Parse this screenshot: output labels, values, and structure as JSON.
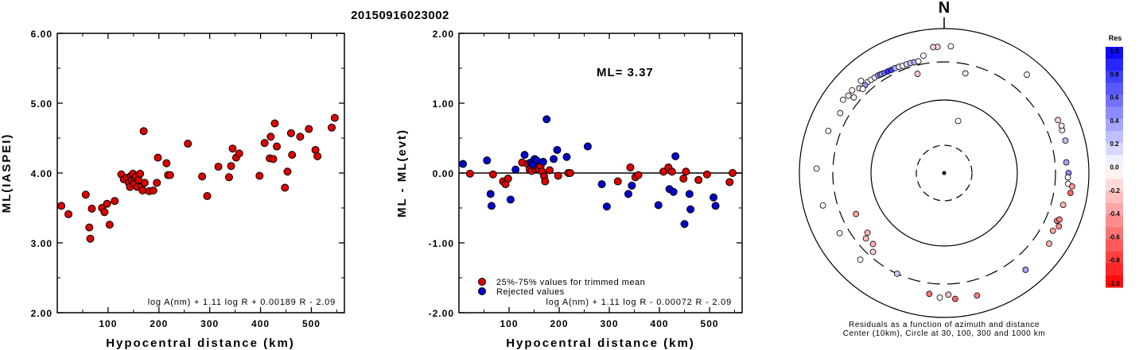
{
  "title": "20150916023002",
  "chart_data": [
    {
      "type": "scatter",
      "xlabel": "Hypocentral distance (km)",
      "ylabel": "ML(IASPEI)",
      "xlim": [
        0,
        565
      ],
      "ylim": [
        2.0,
        6.0
      ],
      "xticks": [
        "100",
        "200",
        "300",
        "400",
        "500"
      ],
      "yticks": [
        "2.00",
        "3.00",
        "4.00",
        "5.00",
        "6.00"
      ],
      "formula": "log A(nm) + 1.11 log R + 0.00189 R - 2.09",
      "series": [
        {
          "color": "#dd0000",
          "points": [
            [
              8,
              3.53
            ],
            [
              22,
              3.41
            ],
            [
              56,
              3.69
            ],
            [
              63,
              3.22
            ],
            [
              65,
              3.06
            ],
            [
              68,
              3.49
            ],
            [
              88,
              3.5
            ],
            [
              93,
              3.44
            ],
            [
              98,
              3.56
            ],
            [
              103,
              3.26
            ],
            [
              113,
              3.6
            ],
            [
              126,
              3.98
            ],
            [
              131,
              3.91
            ],
            [
              137,
              3.93
            ],
            [
              141,
              3.86
            ],
            [
              143,
              3.8
            ],
            [
              145,
              3.96
            ],
            [
              147,
              3.9
            ],
            [
              149,
              3.99
            ],
            [
              151,
              3.85
            ],
            [
              153,
              3.93
            ],
            [
              155,
              3.95
            ],
            [
              157,
              3.8
            ],
            [
              160,
              3.9
            ],
            [
              163,
              3.99
            ],
            [
              166,
              3.8
            ],
            [
              168,
              3.75
            ],
            [
              170,
              4.6
            ],
            [
              172,
              3.86
            ],
            [
              181,
              3.74
            ],
            [
              189,
              3.75
            ],
            [
              196,
              3.86
            ],
            [
              198,
              4.22
            ],
            [
              215,
              4.14
            ],
            [
              218,
              3.97
            ],
            [
              222,
              3.97
            ],
            [
              257,
              4.42
            ],
            [
              285,
              3.95
            ],
            [
              295,
              3.67
            ],
            [
              317,
              4.09
            ],
            [
              338,
              3.94
            ],
            [
              342,
              4.1
            ],
            [
              345,
              4.35
            ],
            [
              352,
              4.22
            ],
            [
              358,
              4.28
            ],
            [
              398,
              3.96
            ],
            [
              408,
              4.43
            ],
            [
              418,
              4.21
            ],
            [
              420,
              4.52
            ],
            [
              425,
              4.2
            ],
            [
              428,
              4.71
            ],
            [
              432,
              4.38
            ],
            [
              448,
              3.79
            ],
            [
              453,
              4.02
            ],
            [
              460,
              4.57
            ],
            [
              462,
              4.26
            ],
            [
              478,
              4.52
            ],
            [
              495,
              4.63
            ],
            [
              508,
              4.33
            ],
            [
              512,
              4.24
            ],
            [
              540,
              4.65
            ],
            [
              546,
              4.79
            ]
          ]
        }
      ]
    },
    {
      "type": "scatter",
      "xlabel": "Hypocentral distance (km)",
      "ylabel": "ML - ML(evt)",
      "xlim": [
        0,
        565
      ],
      "ylim": [
        -2.0,
        2.0
      ],
      "xticks": [
        "100",
        "200",
        "300",
        "400",
        "500"
      ],
      "yticks": [
        "-2.00",
        "-1.00",
        "0.00",
        "1.00",
        "2.00"
      ],
      "reference_line": 0.0,
      "ml_label": "ML= 3.37",
      "formula": "log A(nm) + 1.11 log R - 0.00072 R - 2.09",
      "series": [
        {
          "name": "25%-75% values for trimmed mean",
          "color": "#dd0000",
          "points": [
            [
              22,
              -0.01
            ],
            [
              68,
              -0.02
            ],
            [
              88,
              -0.12
            ],
            [
              93,
              -0.16
            ],
            [
              98,
              -0.08
            ],
            [
              126,
              0.15
            ],
            [
              137,
              0.13
            ],
            [
              141,
              0.05
            ],
            [
              145,
              0.03
            ],
            [
              149,
              0.12
            ],
            [
              153,
              0.06
            ],
            [
              157,
              0.08
            ],
            [
              160,
              0.05
            ],
            [
              163,
              0.1
            ],
            [
              166,
              0.02
            ],
            [
              170,
              -0.05
            ],
            [
              172,
              -0.12
            ],
            [
              181,
              0.04
            ],
            [
              198,
              -0.04
            ],
            [
              218,
              0.0
            ],
            [
              222,
              0.0
            ],
            [
              317,
              -0.12
            ],
            [
              342,
              0.08
            ],
            [
              352,
              -0.06
            ],
            [
              358,
              -0.03
            ],
            [
              408,
              0.02
            ],
            [
              418,
              0.08
            ],
            [
              425,
              0.02
            ],
            [
              448,
              -0.08
            ],
            [
              453,
              0.02
            ],
            [
              478,
              -0.1
            ],
            [
              495,
              -0.02
            ],
            [
              546,
              0.0
            ],
            [
              540,
              -0.13
            ]
          ]
        },
        {
          "name": "Rejected values",
          "color": "#0000cc",
          "points": [
            [
              8,
              0.13
            ],
            [
              56,
              0.18
            ],
            [
              63,
              -0.3
            ],
            [
              65,
              -0.47
            ],
            [
              103,
              -0.38
            ],
            [
              113,
              0.05
            ],
            [
              131,
              0.26
            ],
            [
              143,
              0.15
            ],
            [
              147,
              0.12
            ],
            [
              151,
              0.2
            ],
            [
              155,
              0.18
            ],
            [
              168,
              0.16
            ],
            [
              175,
              0.77
            ],
            [
              189,
              0.2
            ],
            [
              196,
              0.33
            ],
            [
              215,
              0.23
            ],
            [
              257,
              0.38
            ],
            [
              285,
              -0.16
            ],
            [
              295,
              -0.48
            ],
            [
              338,
              -0.3
            ],
            [
              345,
              -0.18
            ],
            [
              398,
              -0.46
            ],
            [
              420,
              -0.23
            ],
            [
              428,
              -0.27
            ],
            [
              432,
              0.24
            ],
            [
              460,
              -0.3
            ],
            [
              462,
              -0.52
            ],
            [
              508,
              -0.35
            ],
            [
              512,
              -0.47
            ],
            [
              450,
              -0.73
            ]
          ]
        }
      ]
    },
    {
      "type": "scatter",
      "subtype": "polar-residuals",
      "north_label": "N",
      "caption_line1": "Residuals as a function of azimuth and distance",
      "caption_line2": "Center (10km), Circle at 30, 100, 300 and 1000 km",
      "rings_km": [
        10,
        30,
        100,
        300,
        1000
      ],
      "colorbar": {
        "title": "Res",
        "ticks": [
          "1.0",
          "0.8",
          "0.6",
          "0.4",
          "0.2",
          "0.0",
          "-0.2",
          "-0.4",
          "-0.6",
          "-0.8",
          "-1.0"
        ],
        "min": -1.0,
        "max": 1.0,
        "positive_color": "#0000ff",
        "negative_color": "#ff0000"
      },
      "points": [
        {
          "az": 3,
          "dist": 530,
          "res": 0.0
        },
        {
          "az": 357,
          "dist": 520,
          "res": -0.15
        },
        {
          "az": 355,
          "dist": 520,
          "res": -0.15
        },
        {
          "az": 40,
          "dist": 560,
          "res": 0.0
        },
        {
          "az": 12,
          "dist": 230,
          "res": -0.1
        },
        {
          "az": 65,
          "dist": 500,
          "res": -0.15
        },
        {
          "az": 70,
          "dist": 500,
          "res": -0.1
        },
        {
          "az": 75,
          "dist": 500,
          "res": 0.25
        },
        {
          "az": 68,
          "dist": 520,
          "res": -0.1
        },
        {
          "az": 85,
          "dist": 450,
          "res": 0.35
        },
        {
          "az": 90,
          "dist": 480,
          "res": 0.45
        },
        {
          "az": 92,
          "dist": 470,
          "res": 0.05
        },
        {
          "az": 95,
          "dist": 480,
          "res": 0.0
        },
        {
          "az": 99,
          "dist": 545,
          "res": -0.6
        },
        {
          "az": 96,
          "dist": 560,
          "res": -0.4
        },
        {
          "az": 105,
          "dist": 460,
          "res": -0.3
        },
        {
          "az": 113,
          "dist": 450,
          "res": -0.5
        },
        {
          "az": 112,
          "dist": 480,
          "res": -0.5
        },
        {
          "az": 118,
          "dist": 460,
          "res": -0.35
        },
        {
          "az": 115,
          "dist": 520,
          "res": -0.45
        },
        {
          "az": 124,
          "dist": 520,
          "res": -0.3
        },
        {
          "az": 140,
          "dist": 520,
          "res": 0.35
        },
        {
          "az": 165,
          "dist": 530,
          "res": -0.5
        },
        {
          "az": 175,
          "dist": 520,
          "res": -0.6
        },
        {
          "az": 178,
          "dist": 440,
          "res": -0.25
        },
        {
          "az": 182,
          "dist": 490,
          "res": 0.05
        },
        {
          "az": 187,
          "dist": 440,
          "res": -0.55
        },
        {
          "az": 15,
          "dist": 60,
          "res": 0.0
        },
        {
          "az": 205,
          "dist": 300,
          "res": 0.2
        },
        {
          "az": 225,
          "dist": 220,
          "res": -0.3
        },
        {
          "az": 230,
          "dist": 230,
          "res": -0.25
        },
        {
          "az": 222,
          "dist": 260,
          "res": -0.2
        },
        {
          "az": 232,
          "dist": 200,
          "res": -0.3
        },
        {
          "az": 245,
          "dist": 200,
          "res": -0.35
        },
        {
          "az": 224,
          "dist": 420,
          "res": 0.0
        },
        {
          "az": 240,
          "dist": 420,
          "res": 0.0
        },
        {
          "az": 255,
          "dist": 500,
          "res": 0.0
        },
        {
          "az": 272,
          "dist": 540,
          "res": 0.0
        },
        {
          "az": 290,
          "dist": 460,
          "res": 0.0
        },
        {
          "az": 315,
          "dist": 410,
          "res": -0.15
        },
        {
          "az": 320,
          "dist": 395,
          "res": 0.1
        },
        {
          "az": 322,
          "dist": 390,
          "res": 0.0
        },
        {
          "az": 324,
          "dist": 385,
          "res": 0.1
        },
        {
          "az": 326,
          "dist": 380,
          "res": 0.3
        },
        {
          "az": 327,
          "dist": 375,
          "res": 0.5
        },
        {
          "az": 328,
          "dist": 370,
          "res": 0.2
        },
        {
          "az": 329,
          "dist": 365,
          "res": 0.6
        },
        {
          "az": 331,
          "dist": 360,
          "res": 0.8
        },
        {
          "az": 333,
          "dist": 355,
          "res": 0.75
        },
        {
          "az": 335,
          "dist": 355,
          "res": 0.3
        },
        {
          "az": 337,
          "dist": 350,
          "res": 0.1
        },
        {
          "az": 339,
          "dist": 345,
          "res": 0.0
        },
        {
          "az": 341,
          "dist": 345,
          "res": 0.15
        },
        {
          "az": 343,
          "dist": 345,
          "res": 0.25
        },
        {
          "az": 345,
          "dist": 340,
          "res": 0.3
        },
        {
          "az": 347,
          "dist": 340,
          "res": 0.0
        },
        {
          "az": 318,
          "dist": 385,
          "res": 0.4
        },
        {
          "az": 316,
          "dist": 370,
          "res": 0.0
        },
        {
          "az": 306,
          "dist": 490,
          "res": 0.0
        },
        {
          "az": 312,
          "dist": 470,
          "res": 0.0
        },
        {
          "az": 309,
          "dist": 460,
          "res": -0.1
        },
        {
          "az": 318,
          "dist": 480,
          "res": 0.0
        },
        {
          "az": 350,
          "dist": 400,
          "res": 0.0
        },
        {
          "az": 300,
          "dist": 410,
          "res": -0.05
        },
        {
          "az": 345,
          "dist": 235,
          "res": -0.2
        },
        {
          "az": 310,
          "dist": 380,
          "res": -0.05
        }
      ]
    }
  ]
}
